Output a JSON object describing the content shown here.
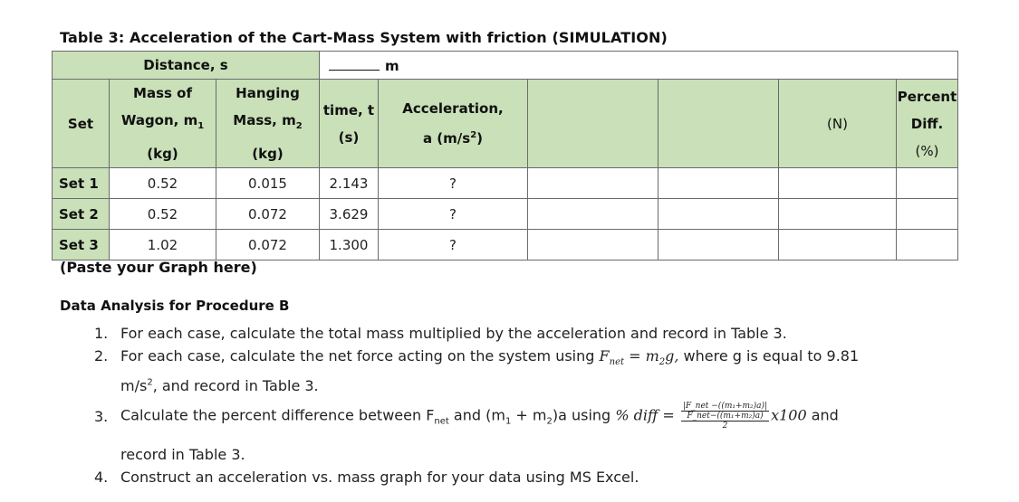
{
  "caption": "Table 3: Acceleration of the Cart-Mass System with friction (SIMULATION)",
  "distance_label": "Distance, s",
  "distance_unit": "m",
  "headers": {
    "set": "Set",
    "wagon_1": "Mass of",
    "wagon_2": "Wagon, m",
    "wagon_sub": "1",
    "wagon_3": "(kg)",
    "hang_1": "Hanging",
    "hang_2": "Mass, m",
    "hang_sub": "2",
    "hang_3": "(kg)",
    "time_1": "time, t",
    "time_2": "(s)",
    "acc_1": "Acceleration,",
    "acc_2": "a (m/s",
    "acc_sup": "2",
    "acc_close": ")",
    "force_unit": "(N)",
    "pct_1": "Percent Diff.",
    "pct_2": "(%)"
  },
  "rows": [
    {
      "set": "Set 1",
      "m1": "0.52",
      "m2": "0.015",
      "t": "2.143",
      "a": "?"
    },
    {
      "set": "Set 2",
      "m1": "0.52",
      "m2": "0.072",
      "t": "3.629",
      "a": "?"
    },
    {
      "set": "Set 3",
      "m1": "1.02",
      "m2": "0.072",
      "t": "1.300",
      "a": "?"
    }
  ],
  "paste_graph": "(Paste your Graph here)",
  "analysis": {
    "title": "Data Analysis for Procedure B",
    "items": [
      {
        "num": "1.",
        "text": "For each case, calculate the total mass multiplied by the acceleration and record in Table 3."
      },
      {
        "num": "2.",
        "text_a": "For each case, calculate the net force acting on the system using",
        "formula": "F",
        "formula_sub": "net",
        "formula_rest": " = m",
        "formula_sub2": "2",
        "formula_end": "g,",
        "text_b": " where g is equal to 9.81",
        "text_c_pre": "m/s",
        "text_c_sup": "2",
        "text_c_post": ", and record in Table 3."
      },
      {
        "num": "3.",
        "text_a": "Calculate the percent difference between F",
        "text_a_sub": "net",
        "text_a2": " and (m",
        "sub1": "1",
        "text_a3": " + m",
        "sub2": "2",
        "text_a4": ")a using",
        "pdiff": "% diff =",
        "frac_top": "|F_net −((m₁+m₂)a)|",
        "frac_bot": "F_net−((m₁+m₂)a)",
        "frac_two": "2",
        "times": "x100",
        "text_end": "and",
        "text_line2": "record in Table 3."
      },
      {
        "num": "4.",
        "text": "Construct an acceleration vs. mass graph for your data using MS Excel."
      }
    ]
  }
}
